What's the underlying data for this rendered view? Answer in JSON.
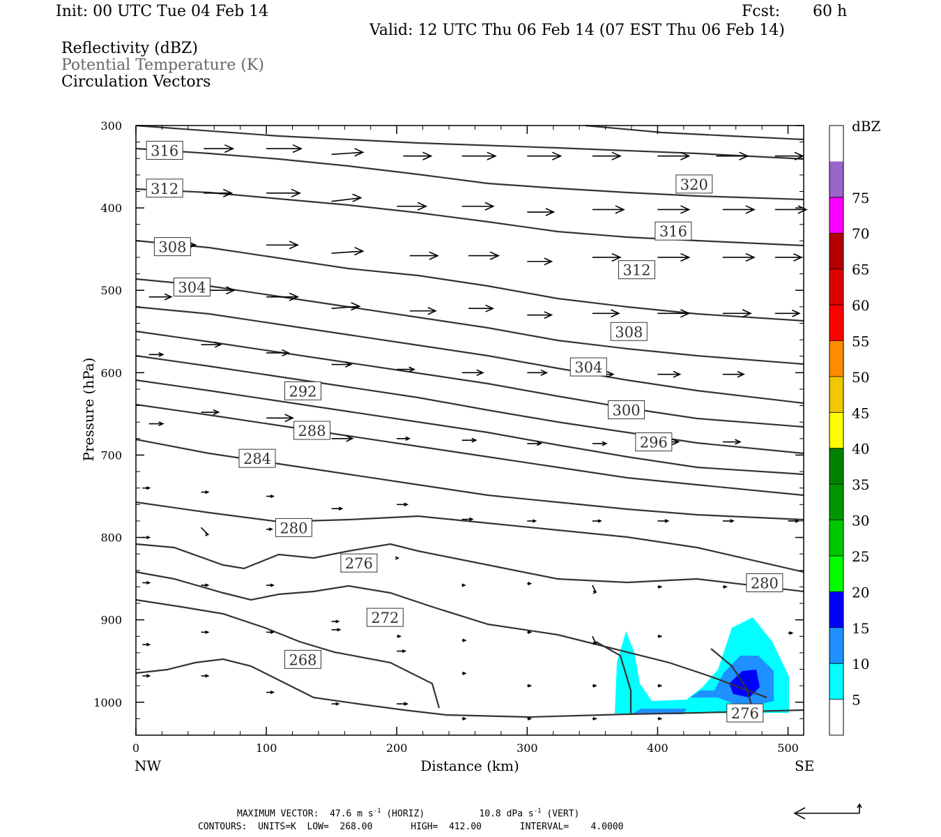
{
  "header": {
    "init": "Init: 00 UTC Tue 04 Feb 14",
    "fcst_label": "Fcst:",
    "fcst_value": "60 h",
    "valid": "Valid: 12 UTC Thu 06 Feb 14 (07 EST Thu 06 Feb 14)",
    "fields": [
      "Reflectivity (dBZ)",
      "Potential Temperature (K)",
      "Circulation Vectors"
    ]
  },
  "footer": {
    "max_vector_label": "MAXIMUM VECTOR:",
    "horiz_value": "47.6 m s",
    "horiz_exp": "-1",
    "horiz_tag": "(HORIZ)",
    "vert_value": "10.8 dPa s",
    "vert_exp": "-1",
    "vert_tag": "(VERT)",
    "contours": "CONTOURS:  UNITS=K  LOW=  268.00       HIGH=  412.00       INTERVAL=    4.0000"
  },
  "colors": {
    "contour": "#333333",
    "vector": "#000000",
    "dbz_scale": [
      "#ffffff",
      "#00ffff",
      "#1e90ff",
      "#0000ff",
      "#00ff00",
      "#00c800",
      "#009600",
      "#008200",
      "#ffff00",
      "#f0c800",
      "#ff8c00",
      "#ff0000",
      "#dc0000",
      "#b40000",
      "#ff00ff",
      "#9966cc",
      "#ffffff"
    ]
  },
  "chart_data": {
    "type": "contour",
    "x_axis": {
      "label": "Distance (km)",
      "range": [
        0,
        512
      ],
      "ticks": [
        0,
        100,
        200,
        300,
        400,
        500
      ],
      "end_labels": [
        "NW",
        "SE"
      ]
    },
    "y_axis": {
      "label": "Pressure (hPa)",
      "range": [
        300,
        1040
      ],
      "ticks": [
        300,
        400,
        500,
        600,
        700,
        800,
        900,
        1000
      ],
      "inverted": true
    },
    "colorbar": {
      "title": "dBZ",
      "labels": [
        5,
        10,
        15,
        20,
        25,
        30,
        35,
        40,
        45,
        50,
        55,
        60,
        65,
        70,
        75
      ]
    },
    "contour_labels": [
      {
        "value": "316",
        "x": 22,
        "p": 330
      },
      {
        "value": "312",
        "x": 22,
        "p": 376
      },
      {
        "value": "308",
        "x": 28,
        "p": 447
      },
      {
        "value": "304",
        "x": 43,
        "p": 496
      },
      {
        "value": "320",
        "x": 428,
        "p": 371
      },
      {
        "value": "316",
        "x": 412,
        "p": 428
      },
      {
        "value": "312",
        "x": 384,
        "p": 475
      },
      {
        "value": "308",
        "x": 378,
        "p": 550
      },
      {
        "value": "304",
        "x": 347,
        "p": 593
      },
      {
        "value": "300",
        "x": 376,
        "p": 645
      },
      {
        "value": "296",
        "x": 397,
        "p": 684
      },
      {
        "value": "292",
        "x": 128,
        "p": 622
      },
      {
        "value": "288",
        "x": 135,
        "p": 670
      },
      {
        "value": "284",
        "x": 93,
        "p": 704
      },
      {
        "value": "280",
        "x": 121,
        "p": 788
      },
      {
        "value": "276",
        "x": 171,
        "p": 831
      },
      {
        "value": "280",
        "x": 482,
        "p": 855
      },
      {
        "value": "272",
        "x": 191,
        "p": 897
      },
      {
        "value": "268",
        "x": 128,
        "p": 948
      },
      {
        "value": "276",
        "x": 467,
        "p": 1013
      }
    ]
  }
}
